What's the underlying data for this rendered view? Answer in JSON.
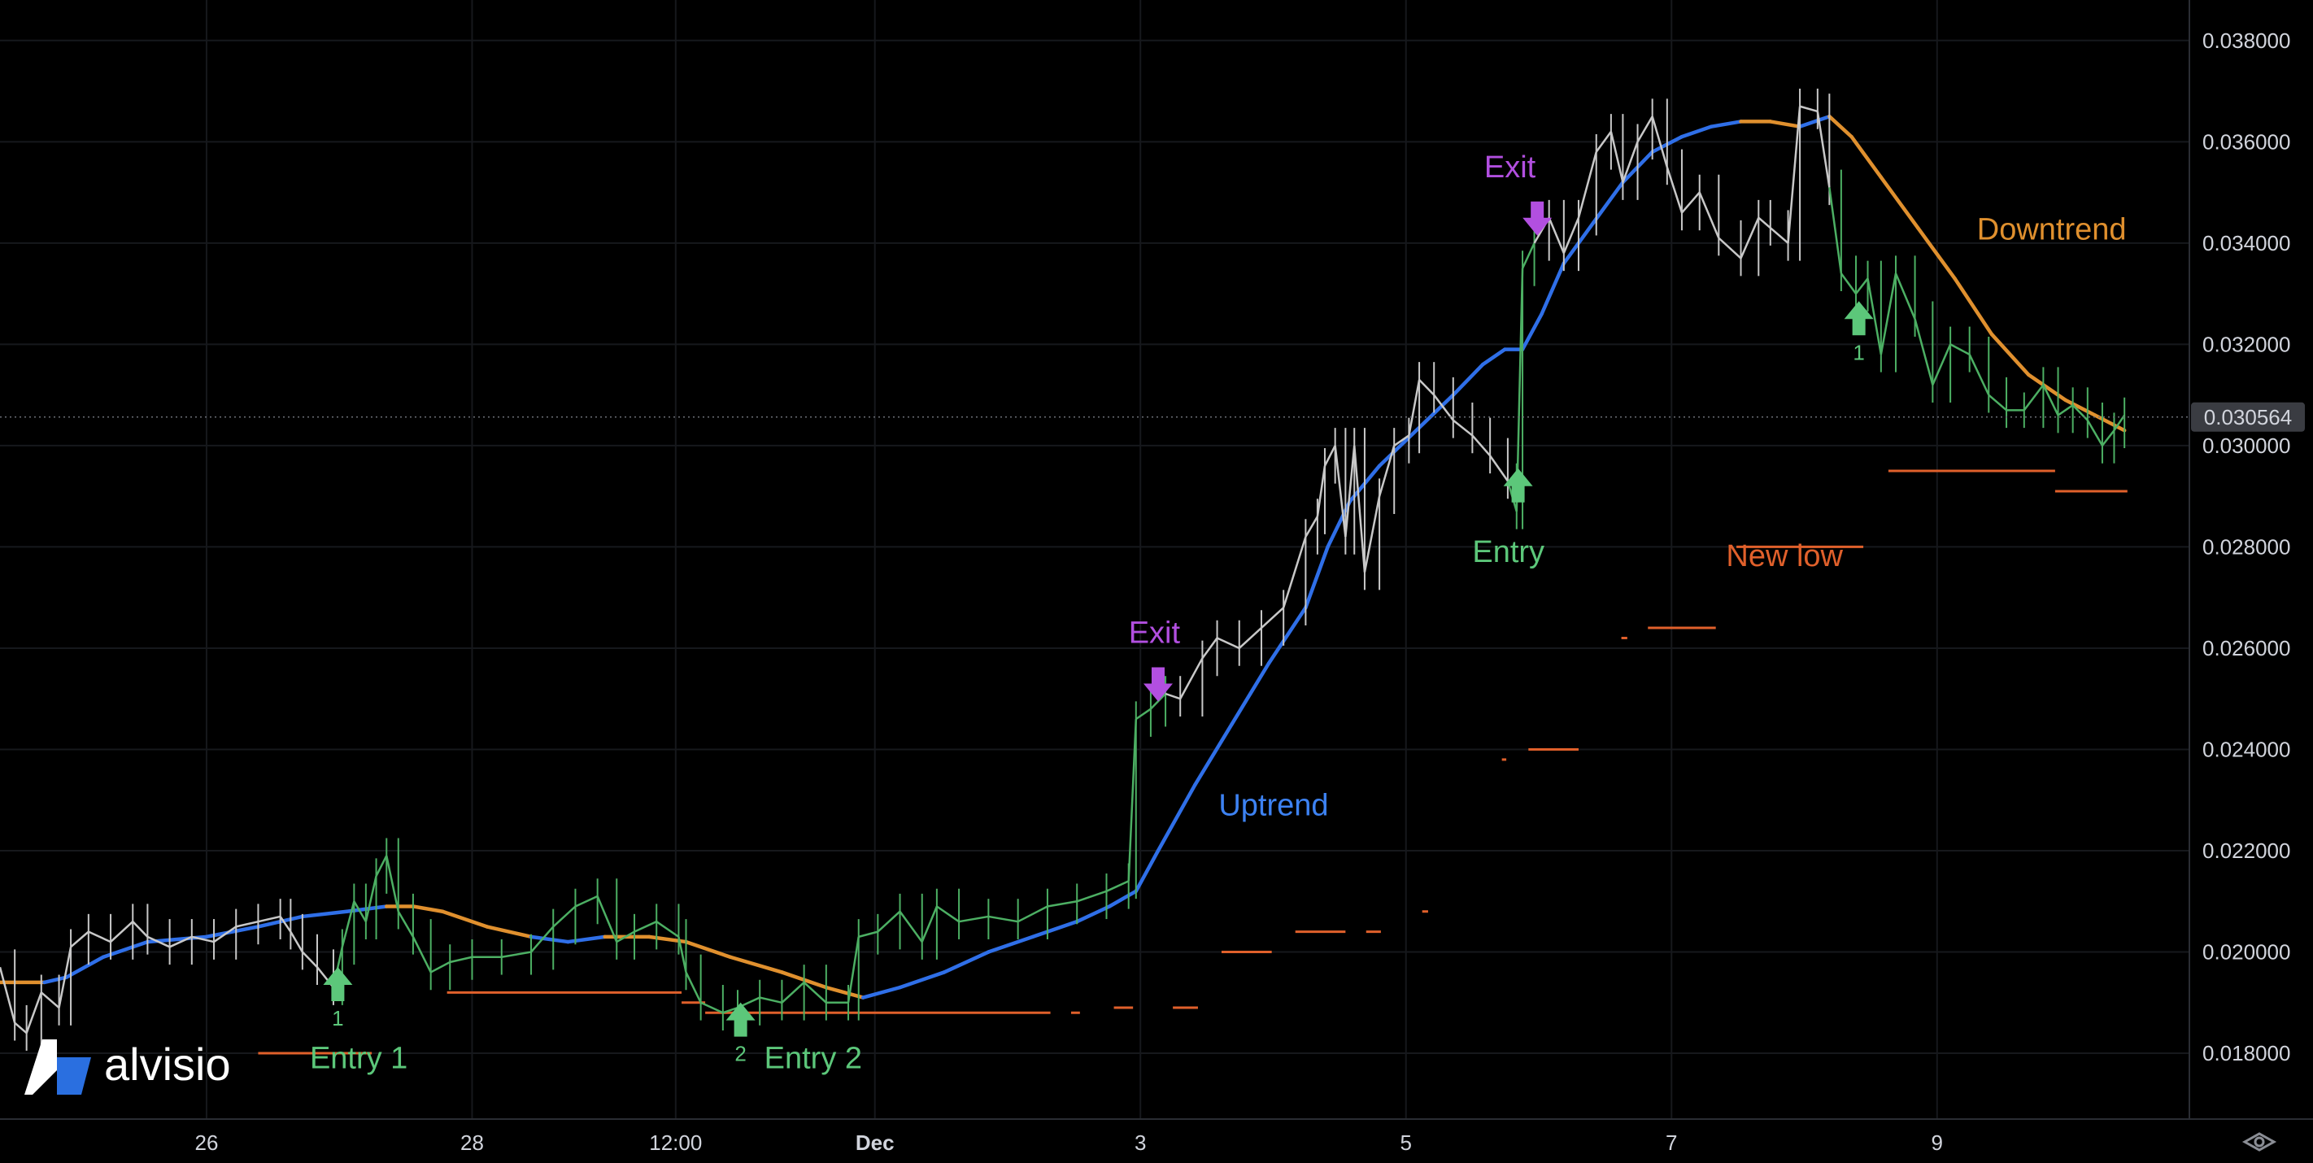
{
  "brand": {
    "name": "alvisio"
  },
  "colors": {
    "background": "#000000",
    "grid": "#16181c",
    "candle_up": "#4caf63",
    "candle_neutral": "#c8c8c8",
    "ma_up": "#2f6fe8",
    "ma_down": "#e0902e",
    "low_line": "#e0602b",
    "entry": "#5cc77a",
    "exit": "#b24fe0",
    "uptrend_text": "#3d82f2",
    "downtrend_text": "#e0902e",
    "newlow_text": "#e0602b",
    "price_label_bg": "#3a3c42"
  },
  "chart_data": {
    "type": "line",
    "title": "",
    "xlabel": "",
    "ylabel": "",
    "ylim": [
      0.0167,
      0.0388
    ],
    "x_ticks": [
      {
        "label": "26",
        "bold": false
      },
      {
        "label": "28",
        "bold": false
      },
      {
        "label": "12:00",
        "bold": false
      },
      {
        "label": "Dec",
        "bold": true
      },
      {
        "label": "3",
        "bold": false
      },
      {
        "label": "5",
        "bold": false
      },
      {
        "label": "7",
        "bold": false
      },
      {
        "label": "9",
        "bold": false
      }
    ],
    "y_ticks": [
      "0.038000",
      "0.036000",
      "0.034000",
      "0.032000",
      "0.030000",
      "0.028000",
      "0.026000",
      "0.024000",
      "0.022000",
      "0.020000",
      "0.018000"
    ],
    "y_tick_values": [
      0.038,
      0.036,
      0.034,
      0.032,
      0.03,
      0.028,
      0.026,
      0.024,
      0.022,
      0.02,
      0.018
    ],
    "x_range": [
      0,
      1460
    ],
    "x_tick_positions": [
      140,
      320,
      458,
      593,
      773,
      953,
      1133,
      1313
    ],
    "last_price": {
      "label": "0.030564",
      "value": 0.030564
    },
    "series": [
      {
        "name": "Price",
        "points": [
          [
            0,
            0.0197
          ],
          [
            10,
            0.0186
          ],
          [
            18,
            0.0184
          ],
          [
            28,
            0.0192
          ],
          [
            40,
            0.0189
          ],
          [
            48,
            0.0201
          ],
          [
            60,
            0.0204
          ],
          [
            75,
            0.0202
          ],
          [
            90,
            0.0206
          ],
          [
            100,
            0.0203
          ],
          [
            115,
            0.0201
          ],
          [
            130,
            0.0203
          ],
          [
            145,
            0.0202
          ],
          [
            160,
            0.0205
          ],
          [
            175,
            0.0206
          ],
          [
            190,
            0.0207
          ],
          [
            197,
            0.0204
          ],
          [
            205,
            0.02
          ],
          [
            215,
            0.0197
          ],
          [
            226,
            0.0193
          ],
          [
            232,
            0.0201
          ],
          [
            240,
            0.021
          ],
          [
            248,
            0.0206
          ],
          [
            255,
            0.0215
          ],
          [
            262,
            0.0219
          ],
          [
            270,
            0.0208
          ],
          [
            280,
            0.0203
          ],
          [
            292,
            0.0196
          ],
          [
            305,
            0.0198
          ],
          [
            320,
            0.0199
          ],
          [
            340,
            0.0199
          ],
          [
            360,
            0.02
          ],
          [
            375,
            0.0205
          ],
          [
            390,
            0.0209
          ],
          [
            405,
            0.0211
          ],
          [
            418,
            0.0202
          ],
          [
            430,
            0.0204
          ],
          [
            445,
            0.0206
          ],
          [
            460,
            0.0203
          ],
          [
            465,
            0.0196
          ],
          [
            475,
            0.019
          ],
          [
            490,
            0.0188
          ],
          [
            500,
            0.0189
          ],
          [
            515,
            0.0191
          ],
          [
            530,
            0.019
          ],
          [
            545,
            0.0194
          ],
          [
            560,
            0.019
          ],
          [
            575,
            0.019
          ],
          [
            582,
            0.0203
          ],
          [
            595,
            0.0204
          ],
          [
            610,
            0.0208
          ],
          [
            625,
            0.0202
          ],
          [
            635,
            0.0209
          ],
          [
            650,
            0.0206
          ],
          [
            670,
            0.0207
          ],
          [
            690,
            0.0206
          ],
          [
            710,
            0.0209
          ],
          [
            730,
            0.021
          ],
          [
            750,
            0.0212
          ],
          [
            765,
            0.0214
          ],
          [
            770,
            0.0246
          ],
          [
            780,
            0.0248
          ],
          [
            790,
            0.0251
          ],
          [
            800,
            0.025
          ],
          [
            815,
            0.0258
          ],
          [
            825,
            0.0262
          ],
          [
            840,
            0.026
          ],
          [
            855,
            0.0264
          ],
          [
            870,
            0.0268
          ],
          [
            885,
            0.0282
          ],
          [
            893,
            0.0286
          ],
          [
            898,
            0.0296
          ],
          [
            905,
            0.03
          ],
          [
            912,
            0.0282
          ],
          [
            918,
            0.03
          ],
          [
            925,
            0.0275
          ],
          [
            935,
            0.029
          ],
          [
            945,
            0.03
          ],
          [
            955,
            0.0302
          ],
          [
            962,
            0.0313
          ],
          [
            972,
            0.031
          ],
          [
            985,
            0.0305
          ],
          [
            998,
            0.0302
          ],
          [
            1010,
            0.0298
          ],
          [
            1022,
            0.0293
          ],
          [
            1028,
            0.0287
          ],
          [
            1032,
            0.0335
          ],
          [
            1040,
            0.034
          ],
          [
            1050,
            0.0345
          ],
          [
            1060,
            0.0338
          ],
          [
            1070,
            0.0345
          ],
          [
            1082,
            0.0358
          ],
          [
            1092,
            0.0362
          ],
          [
            1100,
            0.0352
          ],
          [
            1110,
            0.036
          ],
          [
            1120,
            0.0365
          ],
          [
            1130,
            0.0355
          ],
          [
            1140,
            0.0346
          ],
          [
            1152,
            0.035
          ],
          [
            1165,
            0.0341
          ],
          [
            1180,
            0.0337
          ],
          [
            1192,
            0.0345
          ],
          [
            1200,
            0.0343
          ],
          [
            1212,
            0.034
          ],
          [
            1220,
            0.0367
          ],
          [
            1232,
            0.0366
          ],
          [
            1240,
            0.0351
          ],
          [
            1248,
            0.0334
          ],
          [
            1258,
            0.033
          ],
          [
            1266,
            0.0333
          ],
          [
            1275,
            0.0318
          ],
          [
            1285,
            0.0334
          ],
          [
            1298,
            0.0325
          ],
          [
            1310,
            0.0312
          ],
          [
            1322,
            0.032
          ],
          [
            1335,
            0.0318
          ],
          [
            1348,
            0.031
          ],
          [
            1360,
            0.0307
          ],
          [
            1372,
            0.0307
          ],
          [
            1385,
            0.0312
          ],
          [
            1395,
            0.0306
          ],
          [
            1405,
            0.0308
          ],
          [
            1415,
            0.0305
          ],
          [
            1425,
            0.03
          ],
          [
            1433,
            0.0303
          ],
          [
            1440,
            0.0306
          ]
        ]
      },
      {
        "name": "MA",
        "points": [
          [
            0,
            0.0194
          ],
          [
            30,
            0.0194
          ],
          [
            45,
            0.0195
          ],
          [
            70,
            0.0199
          ],
          [
            100,
            0.0202
          ],
          [
            140,
            0.0203
          ],
          [
            175,
            0.0205
          ],
          [
            205,
            0.0207
          ],
          [
            235,
            0.0208
          ],
          [
            262,
            0.0209
          ],
          [
            280,
            0.0209
          ],
          [
            300,
            0.0208
          ],
          [
            330,
            0.0205
          ],
          [
            360,
            0.0203
          ],
          [
            385,
            0.0202
          ],
          [
            410,
            0.0203
          ],
          [
            440,
            0.0203
          ],
          [
            465,
            0.0202
          ],
          [
            495,
            0.0199
          ],
          [
            530,
            0.0196
          ],
          [
            560,
            0.0193
          ],
          [
            585,
            0.0191
          ],
          [
            610,
            0.0193
          ],
          [
            640,
            0.0196
          ],
          [
            670,
            0.02
          ],
          [
            700,
            0.0203
          ],
          [
            730,
            0.0206
          ],
          [
            752,
            0.0209
          ],
          [
            770,
            0.0212
          ],
          [
            785,
            0.022
          ],
          [
            810,
            0.0233
          ],
          [
            835,
            0.0245
          ],
          [
            860,
            0.0257
          ],
          [
            885,
            0.0268
          ],
          [
            900,
            0.028
          ],
          [
            915,
            0.0289
          ],
          [
            935,
            0.0296
          ],
          [
            960,
            0.0303
          ],
          [
            985,
            0.031
          ],
          [
            1005,
            0.0316
          ],
          [
            1020,
            0.0319
          ],
          [
            1032,
            0.0319
          ],
          [
            1045,
            0.0326
          ],
          [
            1060,
            0.0336
          ],
          [
            1080,
            0.0344
          ],
          [
            1100,
            0.0352
          ],
          [
            1120,
            0.0358
          ],
          [
            1140,
            0.0361
          ],
          [
            1160,
            0.0363
          ],
          [
            1180,
            0.0364
          ],
          [
            1200,
            0.0364
          ],
          [
            1220,
            0.0363
          ],
          [
            1240,
            0.0365
          ],
          [
            1255,
            0.0361
          ],
          [
            1275,
            0.0353
          ],
          [
            1300,
            0.0343
          ],
          [
            1325,
            0.0333
          ],
          [
            1350,
            0.0322
          ],
          [
            1375,
            0.0314
          ],
          [
            1400,
            0.0309
          ],
          [
            1420,
            0.0306
          ],
          [
            1440,
            0.0303
          ]
        ]
      },
      {
        "name": "Low",
        "segments": [
          [
            175,
            252,
            0.018
          ],
          [
            303,
            462,
            0.0192
          ],
          [
            462,
            478,
            0.019
          ],
          [
            478,
            712,
            0.0188
          ],
          [
            726,
            732,
            0.0188
          ],
          [
            755,
            768,
            0.0189
          ],
          [
            795,
            812,
            0.0189
          ],
          [
            828,
            862,
            0.02
          ],
          [
            878,
            912,
            0.0204
          ],
          [
            926,
            936,
            0.0204
          ],
          [
            964,
            968,
            0.0208
          ],
          [
            1018,
            1021,
            0.0238
          ],
          [
            1036,
            1070,
            0.024
          ],
          [
            1099,
            1103,
            0.0262
          ],
          [
            1117,
            1163,
            0.0264
          ],
          [
            1177,
            1263,
            0.028
          ],
          [
            1280,
            1393,
            0.0295
          ],
          [
            1393,
            1442,
            0.0291
          ]
        ]
      }
    ],
    "annotations": [
      {
        "x": 229,
        "value": 0.01935,
        "type": "entry",
        "number": "1",
        "text": "Entry 1",
        "text_x": 210,
        "text_value": 0.0177
      },
      {
        "x": 502,
        "value": 0.01865,
        "type": "entry",
        "number": "2",
        "text": "Entry 2",
        "text_x": 518,
        "text_value": 0.0177
      },
      {
        "x": 785,
        "value": 0.0253,
        "type": "exit",
        "text": "Exit",
        "text_x": 765,
        "text_value": 0.0261
      },
      {
        "x": 1029,
        "value": 0.0292,
        "type": "entry",
        "text": "Entry",
        "text_x": 998,
        "text_value": 0.0277
      },
      {
        "x": 1042,
        "value": 0.0345,
        "type": "exit",
        "text": "Exit",
        "text_x": 1006,
        "text_value": 0.0353
      },
      {
        "x": 1260,
        "value": 0.0325,
        "type": "entry",
        "number": "1"
      }
    ],
    "labels": [
      {
        "text": "Uptrend",
        "x": 826,
        "value": 0.0227,
        "color_key": "uptrend_text"
      },
      {
        "text": "Downtrend",
        "x": 1340,
        "value": 0.03407,
        "color_key": "downtrend_text"
      },
      {
        "text": "New low",
        "x": 1170,
        "value": 0.02762,
        "color_key": "newlow_text"
      }
    ]
  }
}
